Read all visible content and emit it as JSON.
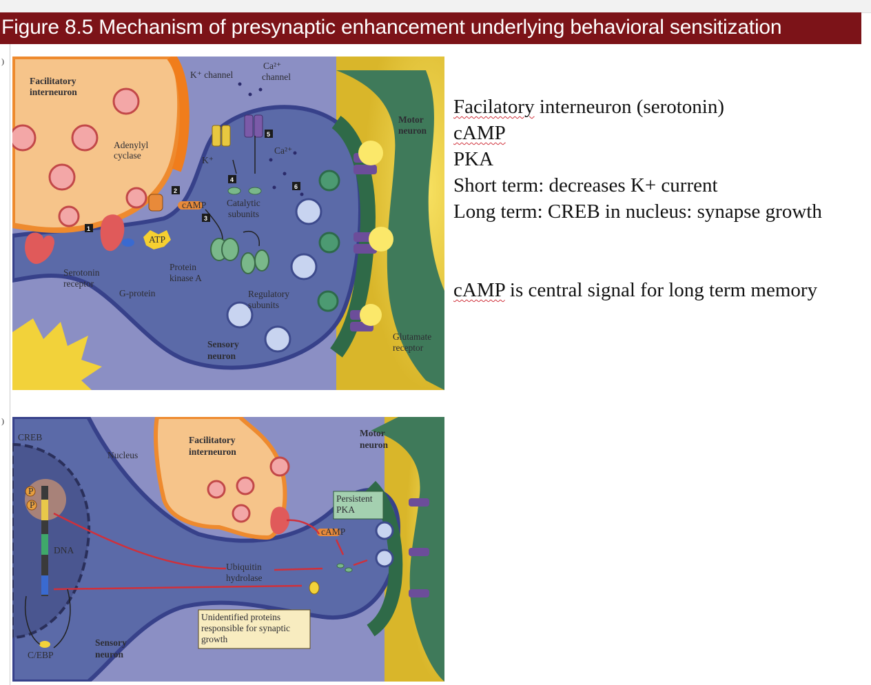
{
  "title": "Figure 8.5  Mechanism of presynaptic enhancement underlying behavioral sensitization",
  "panel_a": {
    "edge_marker": ")",
    "labels": {
      "facilitatory_interneuron": [
        "Facilitatory",
        "interneuron"
      ],
      "k_channel": "K⁺ channel",
      "ca_channel": [
        "Ca²⁺",
        "channel"
      ],
      "motor_neuron": [
        "Motor",
        "neuron"
      ],
      "adenylyl_cyclase": [
        "Adenylyl",
        "cyclase"
      ],
      "k_ion": "K⁺",
      "ca_ion": "Ca²⁺",
      "camp": "cAMP",
      "atp": "ATP",
      "catalytic_subunits": [
        "Catalytic",
        "subunits"
      ],
      "serotonin_receptor": [
        "Serotonin",
        "receptor"
      ],
      "protein_kinase_a": [
        "Protein",
        "kinase A"
      ],
      "g_protein": "G-protein",
      "regulatory_subunits": [
        "Regulatory",
        "subunits"
      ],
      "sensory_neuron": [
        "Sensory",
        "neuron"
      ],
      "glutamate_receptor": [
        "Glutamate",
        "receptor"
      ]
    },
    "steps": [
      "1",
      "2",
      "3",
      "4",
      "5",
      "6"
    ]
  },
  "panel_b": {
    "edge_marker": ")",
    "labels": {
      "creb": "CREB",
      "nucleus": "Nucleus",
      "facilitatory_interneuron": [
        "Facilitatory",
        "interneuron"
      ],
      "motor_neuron": [
        "Motor",
        "neuron"
      ],
      "persistent_pka": [
        "Persistent",
        "PKA"
      ],
      "dna": "DNA",
      "camp": "cAMP",
      "p": "P",
      "ubiquitin_hydrolase": [
        "Ubiquitin",
        "hydrolase"
      ],
      "unidentified_proteins": [
        "Unidentified proteins",
        "responsible for synaptic",
        "growth"
      ],
      "c_ebp": "C/EBP",
      "sensory_neuron": [
        "Sensory",
        "neuron"
      ]
    }
  },
  "notes": [
    {
      "text": "Facilatory interneuron (serotonin)",
      "flagged": "Facilatory"
    },
    {
      "text": "cAMP",
      "flagged": "cAMP"
    },
    {
      "text": "PKA",
      "flagged": ""
    },
    {
      "text": "Short term: decreases K+ current",
      "flagged": ""
    },
    {
      "text": "Long term: CREB in nucleus: synapse growth",
      "flagged": ""
    },
    {
      "text": "",
      "flagged": ""
    },
    {
      "text": "cAMP is central signal for long term memory",
      "flagged": "cAMP"
    }
  ],
  "colors": {
    "title_bar": "#7c1318",
    "sensory_neuron": "#5b6aa8",
    "facilitatory": "#f6c48a",
    "motor_neuron": "#3f7a5a",
    "background_glow": "#f0d040",
    "protein_red": "#e05a5a"
  }
}
